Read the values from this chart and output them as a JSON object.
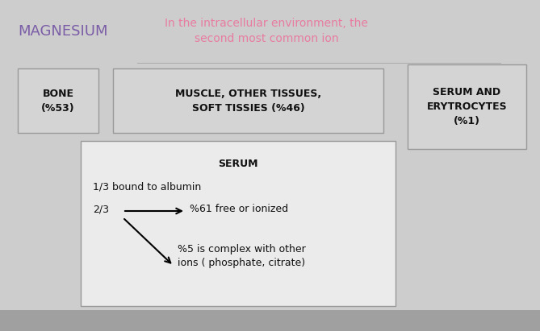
{
  "bg_color": "#cdcdcd",
  "title_text": "MAGNESIUM",
  "title_color": "#7b5ea7",
  "subtitle_text": "In the intracellular environment, the\nsecond most common ion",
  "subtitle_color": "#e87ca0",
  "box1_text": "BONE\n(%53)",
  "box2_text": "MUSCLE, OTHER TISSUES,\nSOFT TISSIES (%46)",
  "box3_text": "SERUM AND\nERYTROCYTES\n(%1)",
  "serum_box_title": "SERUM",
  "serum_line1": "1/3 bound to albumin",
  "serum_line2": "2/3",
  "serum_line3": "%61 free or ionized",
  "serum_line4": "%5 is complex with other\nions ( phosphate, citrate)",
  "box_edge_color": "#999999",
  "box_face_color": "#d4d4d4",
  "serum_box_bg": "#ebebeb",
  "text_color": "#111111",
  "fig_width": 6.69,
  "fig_height": 4.11,
  "dpi": 100
}
